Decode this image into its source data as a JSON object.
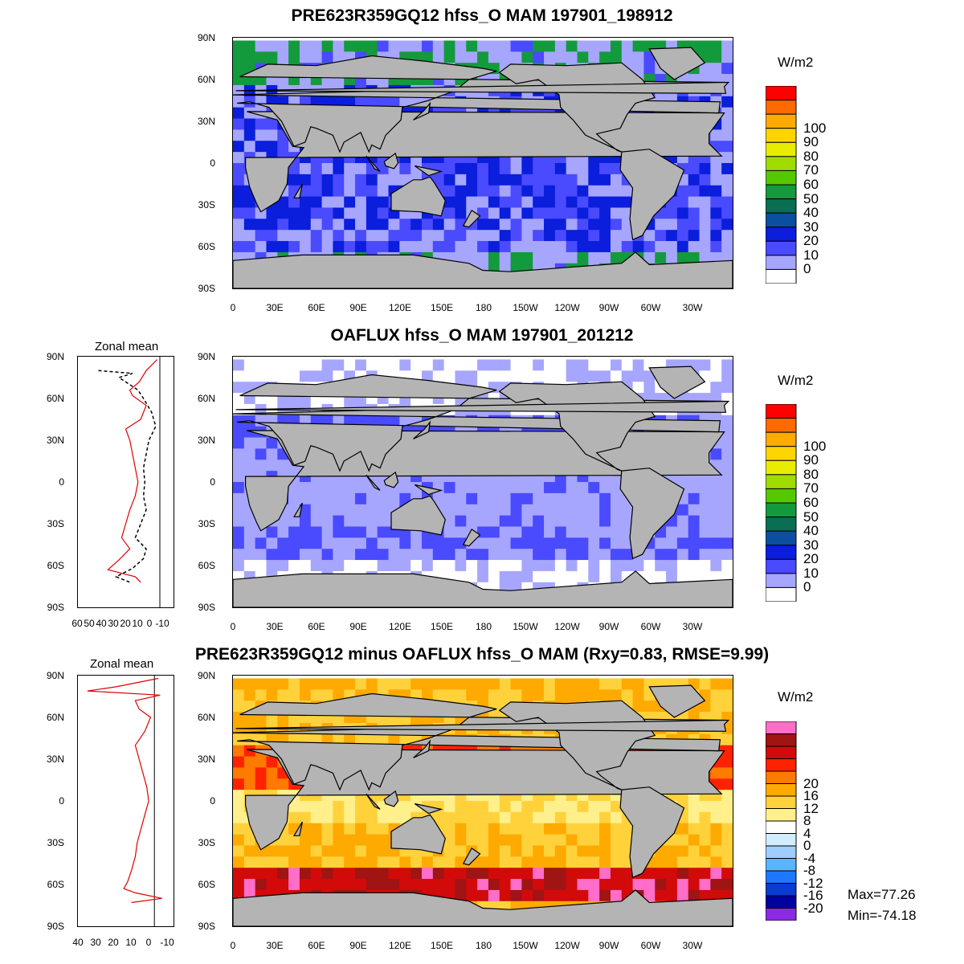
{
  "panels": [
    {
      "title": "PRE623R359GQ12 hfss_O MAM 197901_198912",
      "units": "W/m2",
      "levels": [
        "100",
        "90",
        "80",
        "70",
        "60",
        "50",
        "40",
        "30",
        "20",
        "10",
        "0"
      ],
      "colors": [
        "#ff0000",
        "#ff6a00",
        "#ffaa00",
        "#ffd500",
        "#e8ec00",
        "#a0dc00",
        "#55c800",
        "#139a3c",
        "#0a6e52",
        "#0b4fa0",
        "#0a1edc",
        "#4a4aff",
        "#a6a6ff",
        "#ffffff"
      ],
      "ocean_style": "strong"
    },
    {
      "title": "OAFLUX hfss_O MAM 197901_201212",
      "units": "W/m2",
      "levels": [
        "100",
        "90",
        "80",
        "70",
        "60",
        "50",
        "40",
        "30",
        "20",
        "10",
        "0"
      ],
      "colors": [
        "#ff0000",
        "#ff6a00",
        "#ffaa00",
        "#ffd500",
        "#e8ec00",
        "#a0dc00",
        "#55c800",
        "#139a3c",
        "#0a6e52",
        "#0b4fa0",
        "#0a1edc",
        "#4a4aff",
        "#a6a6ff",
        "#ffffff"
      ],
      "ocean_style": "weak"
    },
    {
      "title": "PRE623R359GQ12 minus OAFLUX hfss_O MAM (Rxy=0.83, RMSE=9.99)",
      "units": "W/m2",
      "levels": [
        "20",
        "16",
        "12",
        "8",
        "4",
        "0",
        "-4",
        "-8",
        "-12",
        "-16",
        "-20"
      ],
      "colors": [
        "#ff6ec8",
        "#a01414",
        "#d20a0a",
        "#ff2200",
        "#ff7a00",
        "#ffaa00",
        "#ffd23c",
        "#fff08c",
        "#ffffff",
        "#d2ecff",
        "#a0cdff",
        "#5ab4ff",
        "#1e78ff",
        "#0a3cd2",
        "#0000a0",
        "#8a2be2"
      ],
      "ocean_style": "diff"
    }
  ],
  "lat_ticks": [
    "90N",
    "60N",
    "30N",
    "0",
    "30S",
    "60S",
    "90S"
  ],
  "lon_ticks": [
    "0",
    "30E",
    "60E",
    "90E",
    "120E",
    "150E",
    "180",
    "150W",
    "120W",
    "90W",
    "60W",
    "30W"
  ],
  "zonal_mean": {
    "title": "Zonal mean",
    "panel2_xticks": [
      "60",
      "50",
      "40",
      "30",
      "20",
      "10",
      "0",
      "-10"
    ],
    "panel3_xticks": [
      "40",
      "30",
      "20",
      "10",
      "0",
      "-10"
    ]
  },
  "stats": {
    "max": "Max=77.26",
    "min": "Min=-74.18"
  }
}
